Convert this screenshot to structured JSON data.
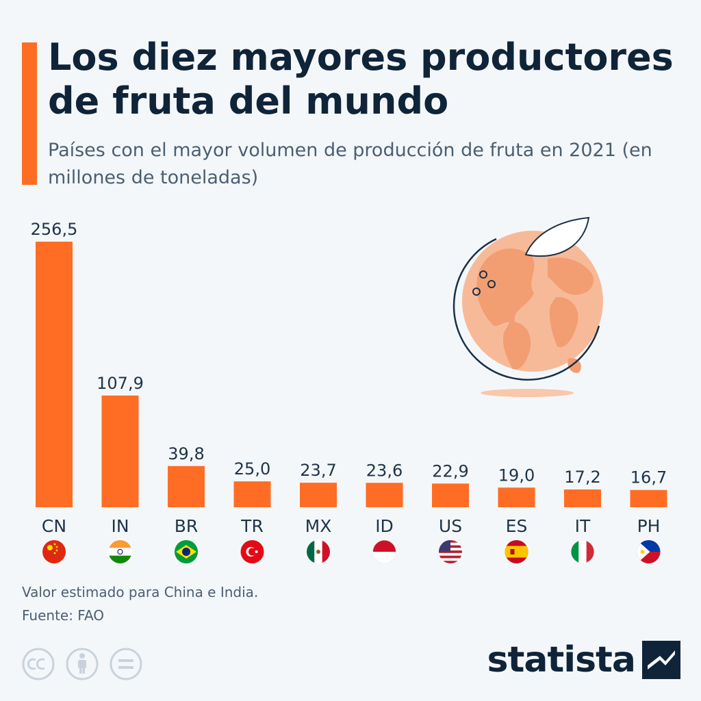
{
  "header": {
    "title": "Los diez mayores productores de fruta del mundo",
    "subtitle": "Países con el mayor volumen de producción de fruta en 2021 (en millones de toneladas)"
  },
  "footer": {
    "note": "Valor estimado para China e India.",
    "source": "Fuente: FAO",
    "brand": "statista"
  },
  "colors": {
    "accent": "#ff6d24",
    "title": "#0f2438",
    "text": "#4b5e72",
    "background": "#f4f7fa"
  },
  "chart_data": {
    "type": "bar",
    "categories": [
      "CN",
      "IN",
      "BR",
      "TR",
      "MX",
      "ID",
      "US",
      "ES",
      "IT",
      "PH"
    ],
    "values": [
      256.5,
      107.9,
      39.8,
      25.0,
      23.7,
      23.6,
      22.9,
      19.0,
      17.2,
      16.7
    ],
    "value_labels": [
      "256,5",
      "107,9",
      "39,8",
      "25,0",
      "23,7",
      "23,6",
      "22,9",
      "19,0",
      "17,2",
      "16,7"
    ],
    "flags": [
      "china-flag-icon",
      "india-flag-icon",
      "brazil-flag-icon",
      "turkey-flag-icon",
      "mexico-flag-icon",
      "indonesia-flag-icon",
      "usa-flag-icon",
      "spain-flag-icon",
      "italy-flag-icon",
      "philippines-flag-icon"
    ],
    "title": "Los diez mayores productores de fruta del mundo",
    "xlabel": "",
    "ylabel": "",
    "ylim": [
      0,
      256.5
    ],
    "grid": false,
    "legend": "none"
  }
}
